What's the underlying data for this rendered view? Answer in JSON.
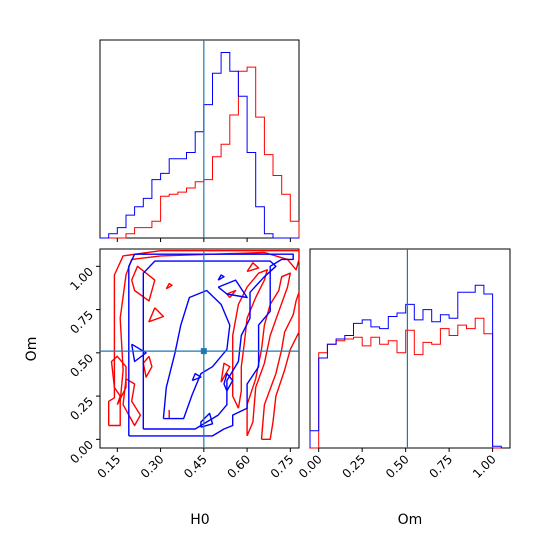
{
  "chart_data": {
    "type": "corner",
    "parameters": [
      "H0",
      "Om"
    ],
    "truths": {
      "H0": 0.45,
      "Om": 0.51
    },
    "colors": {
      "series_a": "#0000ff",
      "series_b": "#ff0000",
      "truth": "#1f77b4"
    },
    "h0_axis": {
      "range": [
        0.09,
        0.78
      ],
      "ticks": [
        "0.15",
        "0.30",
        "0.45",
        "0.60",
        "0.75"
      ],
      "tick_values": [
        0.15,
        0.3,
        0.45,
        0.6,
        0.75
      ],
      "label": "H0"
    },
    "om_axis": {
      "range": [
        -0.05,
        1.1
      ],
      "ticks": [
        "0.00",
        "0.25",
        "0.50",
        "0.75",
        "1.00"
      ],
      "tick_values": [
        0.0,
        0.25,
        0.5,
        0.75,
        1.0
      ],
      "label": "Om"
    },
    "h0_histogram": {
      "bin_edges": [
        0.09,
        0.12,
        0.15,
        0.18,
        0.21,
        0.24,
        0.27,
        0.3,
        0.33,
        0.36,
        0.39,
        0.42,
        0.45,
        0.48,
        0.51,
        0.54,
        0.57,
        0.6,
        0.63,
        0.66,
        0.69,
        0.72,
        0.75,
        0.78
      ],
      "blue_counts": [
        0,
        2,
        5,
        11,
        15,
        19,
        28,
        31,
        38,
        38,
        41,
        51,
        64,
        79,
        89,
        80,
        68,
        41,
        15,
        2,
        0,
        0,
        0
      ],
      "red_counts": [
        0,
        0,
        0,
        2,
        5,
        5,
        8,
        20,
        21,
        22,
        24,
        27,
        28,
        39,
        45,
        59,
        80,
        82,
        58,
        40,
        30,
        21,
        8
      ],
      "ylim": [
        0,
        95
      ]
    },
    "om_histogram": {
      "bin_edges": [
        -0.05,
        0.0,
        0.05,
        0.1,
        0.15,
        0.2,
        0.25,
        0.3,
        0.35,
        0.4,
        0.45,
        0.5,
        0.55,
        0.6,
        0.65,
        0.7,
        0.75,
        0.8,
        0.85,
        0.9,
        0.95,
        1.0,
        1.05
      ],
      "blue_counts": [
        10,
        52,
        60,
        63,
        65,
        72,
        74,
        70,
        69,
        76,
        78,
        83,
        74,
        80,
        73,
        77,
        75,
        90,
        90,
        94,
        89,
        1,
        0
      ],
      "red_counts": [
        0,
        55,
        60,
        62,
        63,
        64,
        59,
        64,
        60,
        62,
        55,
        68,
        54,
        61,
        60,
        69,
        65,
        71,
        69,
        75,
        66,
        0,
        0
      ],
      "ylim": [
        0,
        115
      ]
    },
    "contours_2d": {
      "blue": [
        [
          [
            0.19,
            0.02
          ],
          [
            0.48,
            0.02
          ],
          [
            0.52,
            0.06
          ],
          [
            0.55,
            0.08
          ],
          [
            0.55,
            0.14
          ],
          [
            0.6,
            0.18
          ],
          [
            0.6,
            0.32
          ],
          [
            0.64,
            0.42
          ],
          [
            0.64,
            0.66
          ],
          [
            0.68,
            0.74
          ],
          [
            0.68,
            1.0
          ],
          [
            0.72,
            1.04
          ],
          [
            0.76,
            1.04
          ],
          [
            0.76,
            1.07
          ],
          [
            0.21,
            1.07
          ],
          [
            0.19,
            1.0
          ],
          [
            0.19,
            0.02
          ]
        ],
        [
          [
            0.24,
            0.06
          ],
          [
            0.42,
            0.06
          ],
          [
            0.46,
            0.1
          ],
          [
            0.5,
            0.14
          ],
          [
            0.53,
            0.2
          ],
          [
            0.53,
            0.34
          ],
          [
            0.57,
            0.45
          ],
          [
            0.58,
            0.6
          ],
          [
            0.61,
            0.7
          ],
          [
            0.61,
            0.85
          ],
          [
            0.66,
            0.94
          ],
          [
            0.7,
            1.0
          ],
          [
            0.68,
            1.03
          ],
          [
            0.28,
            1.03
          ],
          [
            0.24,
            0.96
          ],
          [
            0.24,
            0.06
          ]
        ],
        [
          [
            0.31,
            0.12
          ],
          [
            0.38,
            0.12
          ],
          [
            0.41,
            0.26
          ],
          [
            0.44,
            0.38
          ],
          [
            0.48,
            0.42
          ],
          [
            0.53,
            0.52
          ],
          [
            0.54,
            0.66
          ],
          [
            0.51,
            0.78
          ],
          [
            0.46,
            0.86
          ],
          [
            0.4,
            0.82
          ],
          [
            0.37,
            0.66
          ],
          [
            0.35,
            0.5
          ],
          [
            0.32,
            0.3
          ],
          [
            0.31,
            0.12
          ]
        ],
        [
          [
            0.44,
            0.07
          ],
          [
            0.48,
            0.09
          ],
          [
            0.47,
            0.15
          ],
          [
            0.44,
            0.1
          ],
          [
            0.44,
            0.07
          ]
        ],
        [
          [
            0.53,
            0.28
          ],
          [
            0.55,
            0.34
          ],
          [
            0.53,
            0.38
          ],
          [
            0.52,
            0.32
          ],
          [
            0.53,
            0.28
          ]
        ],
        [
          [
            0.5,
            0.88
          ],
          [
            0.53,
            0.84
          ],
          [
            0.6,
            0.82
          ],
          [
            0.56,
            0.92
          ],
          [
            0.5,
            0.88
          ]
        ],
        [
          [
            0.41,
            0.34
          ],
          [
            0.44,
            0.36
          ],
          [
            0.42,
            0.38
          ],
          [
            0.41,
            0.34
          ]
        ],
        [
          [
            0.2,
            0.55
          ],
          [
            0.25,
            0.5
          ],
          [
            0.21,
            0.45
          ],
          [
            0.2,
            0.55
          ]
        ],
        [
          [
            0.5,
            0.92
          ],
          [
            0.52,
            0.94
          ],
          [
            0.51,
            0.95
          ],
          [
            0.5,
            0.92
          ]
        ]
      ],
      "red": [
        [
          [
            0.12,
            0.08
          ],
          [
            0.12,
            0.22
          ],
          [
            0.14,
            0.24
          ],
          [
            0.14,
            0.95
          ],
          [
            0.17,
            1.06
          ],
          [
            0.3,
            1.09
          ],
          [
            0.78,
            1.09
          ],
          [
            0.78,
            1.04
          ],
          [
            0.77,
            0.98
          ],
          [
            0.74,
            1.04
          ],
          [
            0.66,
            1.08
          ],
          [
            0.3,
            1.06
          ],
          [
            0.2,
            1.04
          ],
          [
            0.18,
            0.95
          ],
          [
            0.16,
            0.7
          ],
          [
            0.17,
            0.4
          ],
          [
            0.16,
            0.22
          ],
          [
            0.16,
            0.08
          ],
          [
            0.12,
            0.08
          ]
        ],
        [
          [
            0.18,
            0.35
          ],
          [
            0.21,
            0.32
          ],
          [
            0.2,
            0.22
          ],
          [
            0.23,
            0.14
          ],
          [
            0.21,
            0.08
          ],
          [
            0.17,
            0.2
          ],
          [
            0.18,
            0.35
          ]
        ],
        [
          [
            0.2,
            0.92
          ],
          [
            0.21,
            0.86
          ],
          [
            0.26,
            0.8
          ],
          [
            0.28,
            0.92
          ],
          [
            0.22,
            1.0
          ],
          [
            0.2,
            0.92
          ]
        ],
        [
          [
            0.15,
            0.2
          ],
          [
            0.16,
            0.25
          ],
          [
            0.14,
            0.3
          ],
          [
            0.13,
            0.45
          ],
          [
            0.15,
            0.48
          ],
          [
            0.18,
            0.42
          ],
          [
            0.18,
            0.3
          ],
          [
            0.15,
            0.2
          ]
        ],
        [
          [
            0.26,
            0.48
          ],
          [
            0.27,
            0.42
          ],
          [
            0.25,
            0.36
          ],
          [
            0.24,
            0.44
          ],
          [
            0.26,
            0.48
          ]
        ],
        [
          [
            0.28,
            0.76
          ],
          [
            0.31,
            0.71
          ],
          [
            0.26,
            0.68
          ],
          [
            0.28,
            0.76
          ]
        ],
        [
          [
            0.32,
            0.87
          ],
          [
            0.34,
            0.89
          ],
          [
            0.33,
            0.9
          ],
          [
            0.32,
            0.87
          ]
        ],
        [
          [
            0.51,
            0.33
          ],
          [
            0.54,
            0.42
          ],
          [
            0.52,
            0.44
          ],
          [
            0.51,
            0.33
          ]
        ],
        [
          [
            0.54,
            0.82
          ],
          [
            0.56,
            0.86
          ],
          [
            0.53,
            0.84
          ],
          [
            0.54,
            0.82
          ]
        ],
        [
          [
            0.57,
            0.18
          ],
          [
            0.58,
            0.28
          ],
          [
            0.58,
            0.42
          ],
          [
            0.59,
            0.55
          ],
          [
            0.6,
            0.7
          ],
          [
            0.63,
            0.82
          ],
          [
            0.66,
            0.92
          ],
          [
            0.67,
            0.98
          ],
          [
            0.64,
            0.96
          ],
          [
            0.6,
            0.88
          ],
          [
            0.57,
            0.78
          ],
          [
            0.55,
            0.6
          ],
          [
            0.55,
            0.4
          ],
          [
            0.55,
            0.25
          ],
          [
            0.57,
            0.18
          ]
        ],
        [
          [
            0.6,
            0.02
          ],
          [
            0.6,
            0.2
          ],
          [
            0.63,
            0.35
          ],
          [
            0.65,
            0.52
          ],
          [
            0.66,
            0.66
          ],
          [
            0.68,
            0.78
          ],
          [
            0.71,
            0.86
          ],
          [
            0.72,
            0.94
          ],
          [
            0.75,
            0.96
          ],
          [
            0.74,
            0.88
          ],
          [
            0.71,
            0.74
          ],
          [
            0.68,
            0.6
          ],
          [
            0.66,
            0.44
          ],
          [
            0.63,
            0.3
          ],
          [
            0.62,
            0.1
          ],
          [
            0.6,
            0.02
          ]
        ],
        [
          [
            0.65,
            0.0
          ],
          [
            0.66,
            0.2
          ],
          [
            0.7,
            0.38
          ],
          [
            0.72,
            0.52
          ],
          [
            0.73,
            0.62
          ],
          [
            0.76,
            0.72
          ],
          [
            0.77,
            0.8
          ],
          [
            0.78,
            0.85
          ],
          [
            0.78,
            0.62
          ],
          [
            0.75,
            0.52
          ],
          [
            0.73,
            0.4
          ],
          [
            0.7,
            0.25
          ],
          [
            0.69,
            0.1
          ],
          [
            0.68,
            0.0
          ],
          [
            0.65,
            0.0
          ]
        ],
        [
          [
            0.33,
            0.17
          ],
          [
            0.33,
            0.12
          ]
        ],
        [
          [
            0.6,
            0.97
          ],
          [
            0.64,
            0.99
          ],
          [
            0.62,
            1.02
          ],
          [
            0.6,
            0.97
          ]
        ]
      ]
    }
  }
}
